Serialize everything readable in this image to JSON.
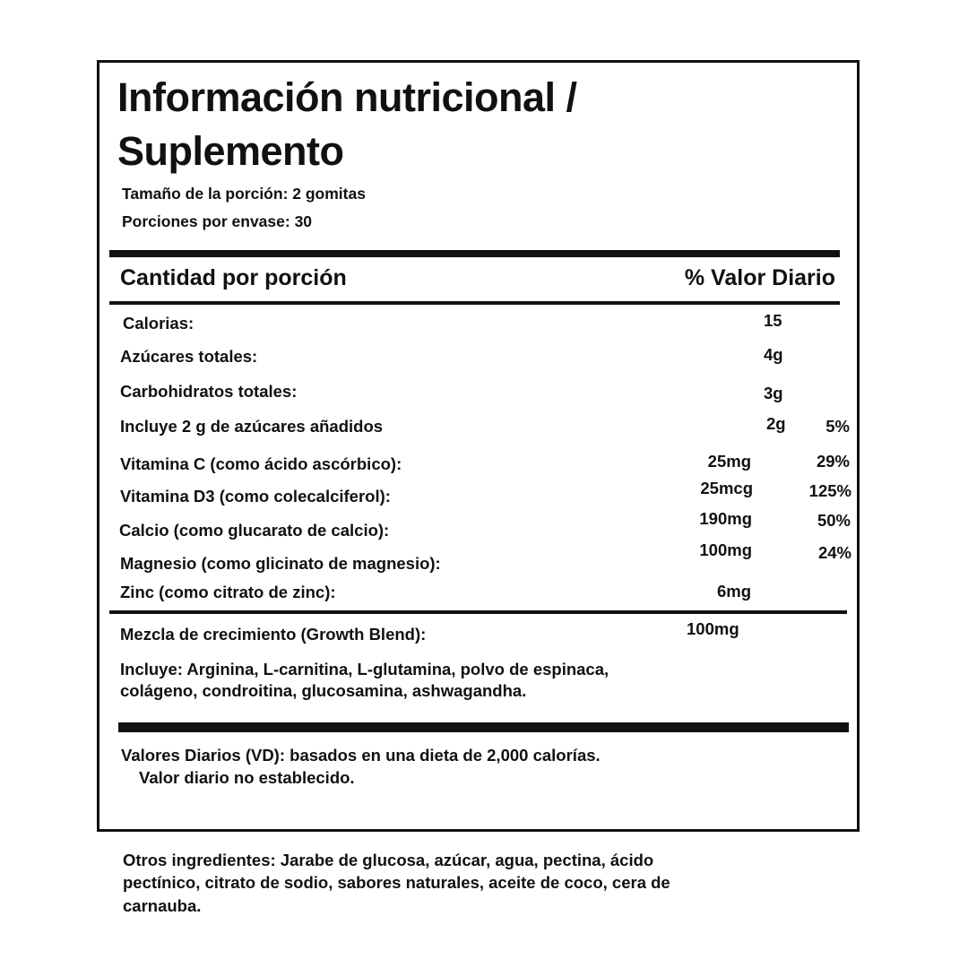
{
  "title_line1": "Información nutricional /",
  "title_line2": "Suplemento",
  "serving_size": "Tamaño de la porción: 2 gomitas",
  "servings_per_container": "Porciones por envase: 30",
  "header": {
    "amount": "Cantidad por porción",
    "dv": "% Valor Diario"
  },
  "rows": [
    {
      "label": "Calorias:",
      "amount": "15",
      "dv": ""
    },
    {
      "label": "Azúcares totales:",
      "amount": "4g",
      "dv": ""
    },
    {
      "label": "Carbohidratos totales:",
      "amount": "3g",
      "dv": ""
    },
    {
      "label": "Incluye 2 g de azúcares añadidos",
      "amount": "2g",
      "dv": "5%"
    },
    {
      "label": "Vitamina C (como ácido ascórbico):",
      "amount": "25mg",
      "dv": "29%"
    },
    {
      "label": "Vitamina D3 (como colecalciferol):",
      "amount": "25mcg",
      "dv": "125%"
    },
    {
      "label": "Calcio (como glucarato de calcio):",
      "amount": "190mg",
      "dv": "50%"
    },
    {
      "label": "Magnesio (como glicinato de magnesio):",
      "amount": "100mg",
      "dv": "24%"
    },
    {
      "label": "Zinc (como citrato de zinc):",
      "amount": "6mg",
      "dv": ""
    }
  ],
  "blend": {
    "label": "Mezcla de crecimiento (Growth Blend):",
    "amount": "100mg",
    "includes_line1": "Incluye: Arginina, L-carnitina, L-glutamina, polvo de espinaca,",
    "includes_line2": "colágeno, condroitina, glucosamina, ashwagandha."
  },
  "footer": {
    "line1": "Valores Diarios (VD): basados en una dieta de 2,000 calorías.",
    "line2": "Valor diario no establecido."
  },
  "other_ingredients": {
    "line1": "Otros ingredientes: Jarabe de glucosa, azúcar, agua, pectina, ácido",
    "line2": "pectínico, citrato de sodio, sabores naturales, aceite de coco, cera de",
    "line3": "carnauba."
  }
}
